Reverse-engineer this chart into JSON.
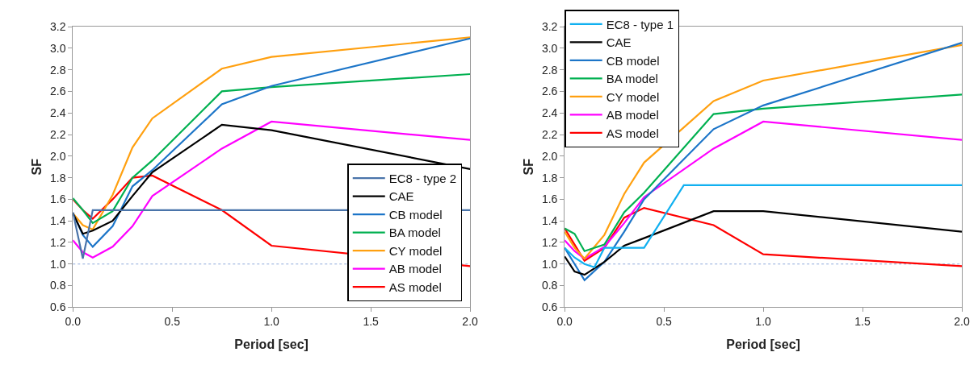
{
  "chart_data": [
    {
      "type": "line",
      "xlabel": "Period [sec]",
      "ylabel": "SF",
      "x": [
        0,
        0.05,
        0.1,
        0.2,
        0.3,
        0.4,
        0.75,
        1.0,
        2.0
      ],
      "xlim": [
        0,
        2.0
      ],
      "xticks": [
        {
          "value": 0,
          "label": "0.0"
        },
        {
          "value": 0.5,
          "label": "0.5"
        },
        {
          "value": 1.0,
          "label": "1.0"
        },
        {
          "value": 1.5,
          "label": "1.5"
        },
        {
          "value": 2.0,
          "label": "2.0"
        }
      ],
      "ylim": [
        0.6,
        3.2
      ],
      "yticks": [
        {
          "value": 0.6,
          "label": "0.6"
        },
        {
          "value": 0.8,
          "label": "0.8"
        },
        {
          "value": 1.0,
          "label": "1.0"
        },
        {
          "value": 1.2,
          "label": "1.2"
        },
        {
          "value": 1.4,
          "label": "1.4"
        },
        {
          "value": 1.6,
          "label": "1.6"
        },
        {
          "value": 1.8,
          "label": "1.8"
        },
        {
          "value": 2.0,
          "label": "2.0"
        },
        {
          "value": 2.2,
          "label": "2.2"
        },
        {
          "value": 2.4,
          "label": "2.4"
        },
        {
          "value": 2.6,
          "label": "2.6"
        },
        {
          "value": 2.8,
          "label": "2.8"
        },
        {
          "value": 3.0,
          "label": "3.0"
        },
        {
          "value": 3.2,
          "label": "3.2"
        }
      ],
      "grid": false,
      "legend": "bottom right",
      "marker": "none",
      "line_style": "solid",
      "ref_lines": [
        {
          "axis": "y",
          "value": 1.0,
          "color": "#8eaadb",
          "line_style": "dotted"
        }
      ],
      "series": [
        {
          "name": "EC8 - type 2",
          "color": "#4a74aa",
          "x": [
            0,
            0.05,
            0.1,
            2.0
          ],
          "values": [
            1.48,
            1.05,
            1.5,
            1.5
          ]
        },
        {
          "name": "CAE",
          "color": "#000000",
          "values": [
            1.47,
            1.28,
            1.31,
            1.4,
            1.63,
            1.85,
            2.29,
            2.24,
            1.88
          ]
        },
        {
          "name": "CB model",
          "color": "#1c75c8",
          "values": [
            1.47,
            1.27,
            1.16,
            1.35,
            1.72,
            1.87,
            2.48,
            2.65,
            3.09
          ]
        },
        {
          "name": "BA model",
          "color": "#00b050",
          "values": [
            1.61,
            1.5,
            1.38,
            1.49,
            1.8,
            1.96,
            2.6,
            2.64,
            2.76
          ]
        },
        {
          "name": "CY model",
          "color": "#ffa010",
          "values": [
            1.47,
            1.36,
            1.32,
            1.64,
            2.08,
            2.35,
            2.81,
            2.92,
            3.1
          ]
        },
        {
          "name": "AB model",
          "color": "#ff00ff",
          "values": [
            1.22,
            1.11,
            1.06,
            1.16,
            1.35,
            1.63,
            2.07,
            2.32,
            2.15
          ]
        },
        {
          "name": "AS model",
          "color": "#ff0000",
          "values": [
            1.6,
            1.5,
            1.42,
            1.6,
            1.8,
            1.82,
            1.5,
            1.17,
            0.98
          ]
        }
      ]
    },
    {
      "type": "line",
      "xlabel": "Period [sec]",
      "ylabel": "SF",
      "x": [
        0,
        0.05,
        0.1,
        0.2,
        0.3,
        0.4,
        0.75,
        1.0,
        2.0
      ],
      "xlim": [
        0,
        2.0
      ],
      "xticks": [
        {
          "value": 0,
          "label": "0.0"
        },
        {
          "value": 0.5,
          "label": "0.5"
        },
        {
          "value": 1.0,
          "label": "1.0"
        },
        {
          "value": 1.5,
          "label": "1.5"
        },
        {
          "value": 2.0,
          "label": "2.0"
        }
      ],
      "ylim": [
        0.6,
        3.2
      ],
      "yticks": [
        {
          "value": 0.6,
          "label": "0.6"
        },
        {
          "value": 0.8,
          "label": "0.8"
        },
        {
          "value": 1.0,
          "label": "1.0"
        },
        {
          "value": 1.2,
          "label": "1.2"
        },
        {
          "value": 1.4,
          "label": "1.4"
        },
        {
          "value": 1.6,
          "label": "1.6"
        },
        {
          "value": 1.8,
          "label": "1.8"
        },
        {
          "value": 2.0,
          "label": "2.0"
        },
        {
          "value": 2.2,
          "label": "2.2"
        },
        {
          "value": 2.4,
          "label": "2.4"
        },
        {
          "value": 2.6,
          "label": "2.6"
        },
        {
          "value": 2.8,
          "label": "2.8"
        },
        {
          "value": 3.0,
          "label": "3.0"
        },
        {
          "value": 3.2,
          "label": "3.2"
        }
      ],
      "grid": false,
      "legend": "top left",
      "marker": "none",
      "line_style": "solid",
      "ref_lines": [
        {
          "axis": "y",
          "value": 1.0,
          "color": "#8eaadb",
          "line_style": "dotted"
        }
      ],
      "series": [
        {
          "name": "EC8 - type 1",
          "color": "#10b0f0",
          "x": [
            0,
            0.05,
            0.1,
            0.15,
            0.2,
            0.4,
            0.6,
            2.0
          ],
          "values": [
            1.15,
            1.06,
            1.0,
            0.97,
            1.15,
            1.15,
            1.73,
            1.73
          ]
        },
        {
          "name": "CAE",
          "color": "#000000",
          "values": [
            1.07,
            0.93,
            0.9,
            1.02,
            1.17,
            1.24,
            1.49,
            1.49,
            1.3
          ]
        },
        {
          "name": "CB model",
          "color": "#1c75c8",
          "values": [
            1.15,
            1.0,
            0.85,
            1.02,
            1.3,
            1.6,
            2.25,
            2.47,
            3.05
          ]
        },
        {
          "name": "BA model",
          "color": "#00b050",
          "values": [
            1.33,
            1.28,
            1.12,
            1.18,
            1.48,
            1.66,
            2.39,
            2.44,
            2.57
          ]
        },
        {
          "name": "CY model",
          "color": "#ffa010",
          "values": [
            1.3,
            1.15,
            1.05,
            1.27,
            1.65,
            1.94,
            2.51,
            2.7,
            3.03
          ]
        },
        {
          "name": "AB model",
          "color": "#ff00ff",
          "values": [
            1.22,
            1.12,
            1.05,
            1.16,
            1.38,
            1.62,
            2.07,
            2.32,
            2.15
          ]
        },
        {
          "name": "AS model",
          "color": "#ff0000",
          "values": [
            1.33,
            1.18,
            1.03,
            1.15,
            1.43,
            1.52,
            1.36,
            1.09,
            0.98
          ]
        }
      ]
    }
  ]
}
